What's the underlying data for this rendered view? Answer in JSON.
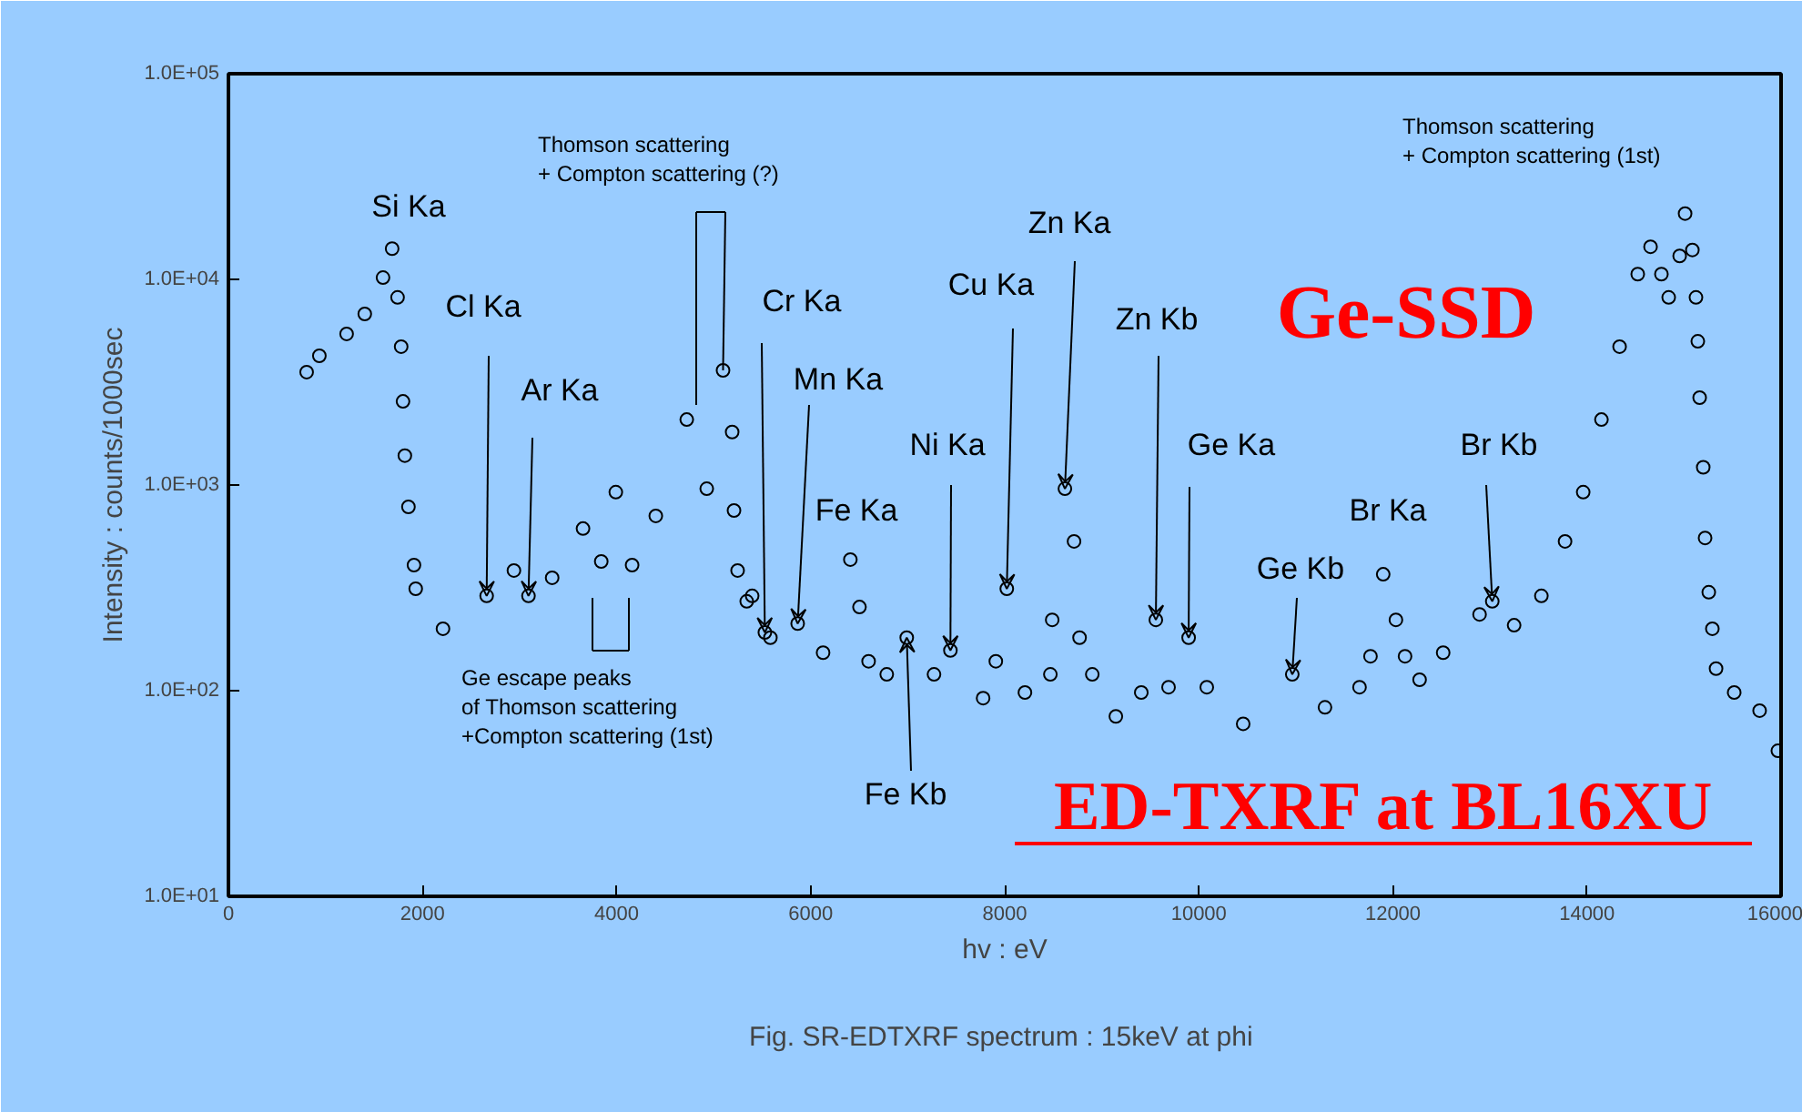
{
  "chart_data": {
    "type": "scatter",
    "title": "Fig.  SR-EDTXRF spectrum : 15keV at phi",
    "xlabel": "hv : eV",
    "ylabel": "Intensity : counts/1000sec",
    "x": [
      806,
      937,
      1218,
      1405,
      1593,
      1687,
      1743,
      1780,
      1799,
      1818,
      1855,
      1912,
      1930,
      2211,
      2661,
      2942,
      3092,
      3336,
      3654,
      3842,
      3992,
      4160,
      4404,
      4723,
      4929,
      5097,
      5191,
      5210,
      5247,
      5341,
      5397,
      5528,
      5585,
      5866,
      6128,
      6409,
      6503,
      6597,
      6784,
      6990,
      7271,
      7440,
      7777,
      7908,
      8021,
      8208,
      8470,
      8489,
      8620,
      8714,
      8771,
      8902,
      9145,
      9407,
      9557,
      9688,
      9895,
      10082,
      10457,
      10963,
      11300,
      11656,
      11769,
      11900,
      12031,
      12125,
      12275,
      12518,
      12893,
      13024,
      13249,
      13530,
      13774,
      13961,
      14149,
      14336,
      14523,
      14655,
      14767,
      14842,
      14955,
      15011,
      15086,
      15123,
      15142,
      15161,
      15198,
      15217,
      15255,
      15292,
      15330,
      15517,
      15779,
      15967
    ],
    "series": [
      {
        "color": "#000000",
        "values": [
          3540,
          4250,
          5430,
          6790,
          10200,
          14100,
          8170,
          4710,
          2550,
          1390,
          783,
          408,
          313,
          200,
          289,
          384,
          289,
          354,
          614,
          425,
          923,
          408,
          708,
          2080,
          959,
          3610,
          1810,
          752,
          384,
          272,
          289,
          192,
          181,
          212,
          153,
          434,
          255,
          139,
          120,
          181,
          120,
          157,
          92,
          139,
          313,
          98,
          120,
          221,
          959,
          532,
          181,
          120,
          75,
          98,
          221,
          104,
          181,
          104,
          69,
          120,
          83,
          104,
          147,
          368,
          221,
          147,
          113,
          153,
          235,
          272,
          208,
          289,
          532,
          923,
          2080,
          4710,
          10600,
          14400,
          10600,
          8170,
          13000,
          20900,
          13900,
          8170,
          5000,
          2660,
          1220,
          553,
          301,
          200,
          128,
          98,
          80,
          51
        ]
      }
    ],
    "marker": "circle",
    "log": "y",
    "grid": false,
    "xlim": [
      0,
      16000
    ],
    "xticks": [
      0,
      2000,
      4000,
      6000,
      8000,
      10000,
      12000,
      14000,
      16000
    ],
    "ylim": [
      10,
      100000
    ],
    "yticks": [
      {
        "value": 10,
        "label": "1.0E+01"
      },
      {
        "value": 100,
        "label": "1.0E+02"
      },
      {
        "value": 1000,
        "label": "1.0E+03"
      },
      {
        "value": 10000,
        "label": "1.0E+04"
      },
      {
        "value": 100000,
        "label": "1.0E+05"
      }
    ],
    "annotations": [
      "Si Ka",
      {
        "text": "Cl Ka",
        "x": 2661,
        "y": 289
      },
      {
        "text": "Ar Ka",
        "x": 3092,
        "y": 289
      },
      {
        "text": "Thomson scattering\n+ Compton scattering (?)",
        "x": 5097,
        "y": 3610
      },
      {
        "text": "Cr Ka",
        "x": 5528,
        "y": 192
      },
      {
        "text": "Mn Ka",
        "x": 5866,
        "y": 212
      },
      "Fe Ka",
      {
        "text": "Ni Ka",
        "x": 7440,
        "y": 157
      },
      {
        "text": "Cu Ka",
        "x": 8021,
        "y": 313
      },
      {
        "text": "Zn Ka",
        "x": 8620,
        "y": 959
      },
      {
        "text": "Zn Kb",
        "x": 9557,
        "y": 221
      },
      {
        "text": "Ge Ka",
        "x": 9895,
        "y": 181
      },
      {
        "text": "Ge Kb",
        "x": 10963,
        "y": 120
      },
      "Br Ka",
      {
        "text": "Br Kb",
        "x": 13024,
        "y": 272
      },
      "Thomson scattering\n+ Compton scattering (1st)",
      {
        "text": "Fe Kb",
        "x": 6990,
        "y": 181
      },
      "Ge escape peaks\nof Thomson scattering\n+Compton scattering (1st)",
      "Ge-SSD",
      "ED-TXRF at BL16XU"
    ]
  }
}
